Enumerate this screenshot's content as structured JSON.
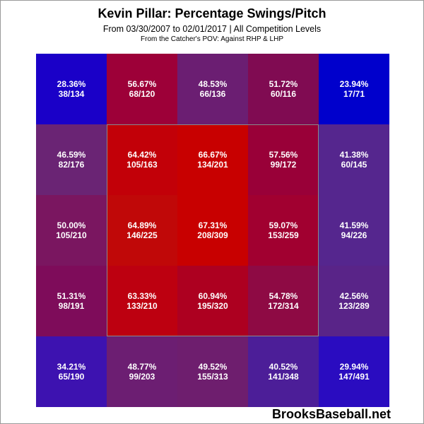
{
  "title": "Kevin Pillar: Percentage Swings/Pitch",
  "subtitle": "From 03/30/2007 to 02/01/2017 | All Competition Levels",
  "subtitle2": "From the Catcher's POV:  Against RHP & LHP",
  "watermark": "BrooksBaseball.net",
  "chart_data": {
    "type": "heatmap",
    "rows": 5,
    "cols": 5,
    "strike_zone": "inner 3x3 cells",
    "cells": [
      [
        {
          "pct": "28.36%",
          "count": "38/134",
          "value": 28.36,
          "color": "#1a00c8"
        },
        {
          "pct": "56.67%",
          "count": "68/120",
          "value": 56.67,
          "color": "#9d0038"
        },
        {
          "pct": "48.53%",
          "count": "66/136",
          "value": 48.53,
          "color": "#6b1e72"
        },
        {
          "pct": "51.72%",
          "count": "60/116",
          "value": 51.72,
          "color": "#800b52"
        },
        {
          "pct": "23.94%",
          "count": "17/71",
          "value": 23.94,
          "color": "#0000cc"
        }
      ],
      [
        {
          "pct": "46.59%",
          "count": "82/176",
          "value": 46.59,
          "color": "#6a2474"
        },
        {
          "pct": "64.42%",
          "count": "105/163",
          "value": 64.42,
          "color": "#c20008"
        },
        {
          "pct": "66.67%",
          "count": "134/201",
          "value": 66.67,
          "color": "#c80000"
        },
        {
          "pct": "57.56%",
          "count": "99/172",
          "value": 57.56,
          "color": "#990038"
        },
        {
          "pct": "41.38%",
          "count": "60/145",
          "value": 41.38,
          "color": "#55268e"
        }
      ],
      [
        {
          "pct": "50.00%",
          "count": "105/210",
          "value": 50.0,
          "color": "#7a1660"
        },
        {
          "pct": "64.89%",
          "count": "146/225",
          "value": 64.89,
          "color": "#c00808"
        },
        {
          "pct": "67.31%",
          "count": "208/309",
          "value": 67.31,
          "color": "#c80000"
        },
        {
          "pct": "59.07%",
          "count": "153/259",
          "value": 59.07,
          "color": "#a10030"
        },
        {
          "pct": "41.59%",
          "count": "94/226",
          "value": 41.59,
          "color": "#55268e"
        }
      ],
      [
        {
          "pct": "51.31%",
          "count": "98/191",
          "value": 51.31,
          "color": "#7e0c5a"
        },
        {
          "pct": "63.33%",
          "count": "133/210",
          "value": 63.33,
          "color": "#bd0010"
        },
        {
          "pct": "60.94%",
          "count": "195/320",
          "value": 60.94,
          "color": "#ad0020"
        },
        {
          "pct": "54.78%",
          "count": "172/314",
          "value": 54.78,
          "color": "#8e0a44"
        },
        {
          "pct": "42.56%",
          "count": "123/289",
          "value": 42.56,
          "color": "#592488"
        }
      ],
      [
        {
          "pct": "34.21%",
          "count": "65/190",
          "value": 34.21,
          "color": "#3d12b0"
        },
        {
          "pct": "48.77%",
          "count": "99/203",
          "value": 48.77,
          "color": "#6c1e72"
        },
        {
          "pct": "49.52%",
          "count": "155/313",
          "value": 49.52,
          "color": "#6e1e6e"
        },
        {
          "pct": "40.52%",
          "count": "141/348",
          "value": 40.52,
          "color": "#4c1e98"
        },
        {
          "pct": "29.94%",
          "count": "147/491",
          "value": 29.94,
          "color": "#2a0cc0"
        }
      ]
    ]
  }
}
